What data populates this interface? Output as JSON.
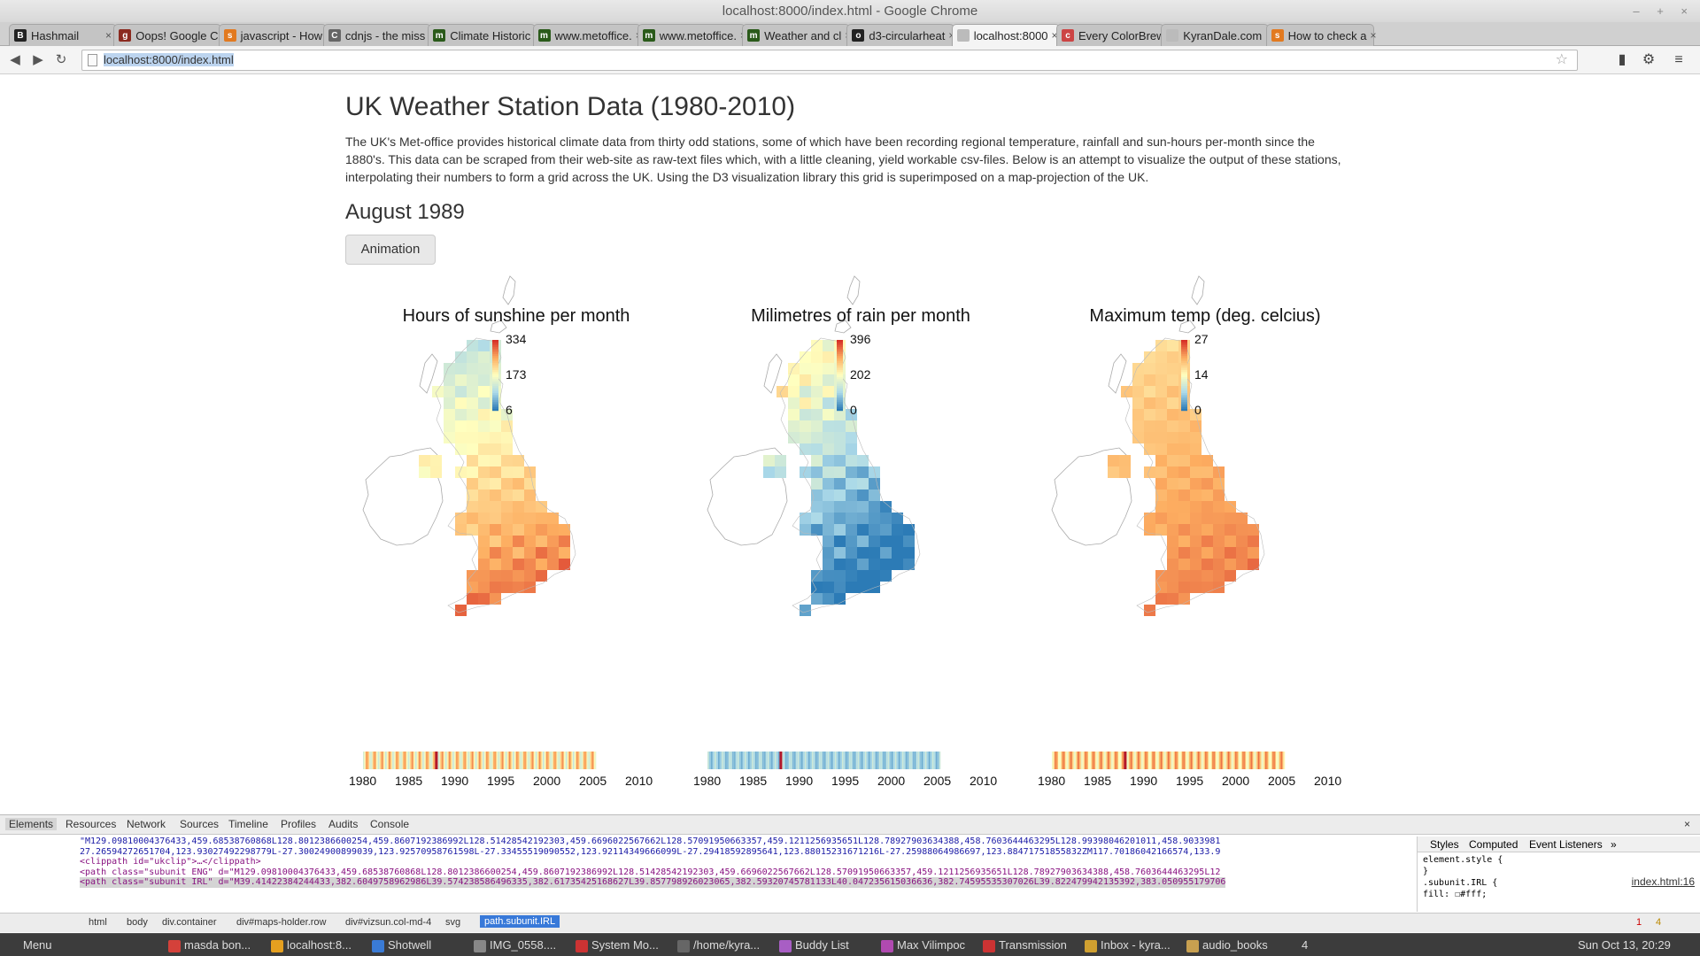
{
  "window": {
    "title": "localhost:8000/index.html - Google Chrome"
  },
  "tabs": [
    {
      "label": "Hashmail",
      "favicon": "B",
      "color": "#222"
    },
    {
      "label": "Oops! Google C",
      "favicon": "g",
      "color": "#8b2a1f"
    },
    {
      "label": "javascript - How",
      "favicon": "s",
      "color": "#e27a20"
    },
    {
      "label": "cdnjs - the miss",
      "favicon": "C",
      "color": "#666"
    },
    {
      "label": "Climate Historic",
      "favicon": "m",
      "color": "#2a5a1a"
    },
    {
      "label": "www.metoffice.",
      "favicon": "m",
      "color": "#2a5a1a"
    },
    {
      "label": "www.metoffice.",
      "favicon": "m",
      "color": "#2a5a1a"
    },
    {
      "label": "Weather and cl",
      "favicon": "m",
      "color": "#2a5a1a"
    },
    {
      "label": "d3-circularheat",
      "favicon": "o",
      "color": "#222"
    },
    {
      "label": "localhost:8000",
      "favicon": "",
      "color": "#bbb"
    },
    {
      "label": "Every ColorBrew",
      "favicon": "c",
      "color": "#c44"
    },
    {
      "label": "KyranDale.com",
      "favicon": "",
      "color": "#bbb"
    },
    {
      "label": "How to check a",
      "favicon": "s",
      "color": "#e27a20"
    }
  ],
  "toolbar": {
    "url": "localhost:8000/index.html"
  },
  "page": {
    "title": "UK Weather Station Data (1980-2010)",
    "description": "The UK's Met-office provides historical climate data from thirty odd stations, some of which have been recording regional temperature, rainfall and sun-hours per-month since the 1880's. This data can be scraped from their web-site as raw-text files which, with a little cleaning, yield workable csv-files. Below is an attempt to visualize the output of these stations, interpolating their numbers to form a grid across the UK. Using the D3 visualization library this grid is superimposed on a map-projection of the UK.",
    "current_month": "August 1989",
    "animation_button": "Animation"
  },
  "chart_data": [
    {
      "type": "heatmap",
      "title": "Hours of sunshine per month",
      "legend": {
        "max": "334",
        "mid": "173",
        "min": "6"
      },
      "timeline_labels": [
        "1980",
        "1985",
        "1990",
        "1995",
        "2000",
        "2005",
        "2010"
      ],
      "selected_year": 1989.6
    },
    {
      "type": "heatmap",
      "title": "Milimetres of rain per month",
      "legend": {
        "max": "396",
        "mid": "202",
        "min": "0"
      },
      "timeline_labels": [
        "1980",
        "1985",
        "1990",
        "1995",
        "2000",
        "2005",
        "2010"
      ],
      "selected_year": 1989.6
    },
    {
      "type": "heatmap",
      "title": "Maximum temp (deg. celcius)",
      "legend": {
        "max": "27",
        "mid": "14",
        "min": "0"
      },
      "timeline_labels": [
        "1980",
        "1985",
        "1990",
        "1995",
        "2000",
        "2005",
        "2010"
      ],
      "selected_year": 1989.6
    }
  ],
  "devtools": {
    "tabs": [
      "Elements",
      "Resources",
      "Network",
      "Sources",
      "Timeline",
      "Profiles",
      "Audits",
      "Console"
    ],
    "code_lines": [
      "\"M129.09810004376433,459.68538760868L128.8012386600254,459.8607192386992L128.51428542192303,459.6696022567662L128.57091950663357,459.1211256935651L128.78927903634388,458.7603644463295L128.99398046201011,458.9033981",
      "27.26594272651704,123.93027492298779L-27.30024900899039,123.92570958761598L-27.33455519090552,123.92114349666099L-27.29418592895641,123.88015231671216L-27.25988064986697,123.88471751855832ZM117.70186042166574,133.9",
      "<clippath id=\"ukclip\">…</clippath>",
      "<path class=\"subunit ENG\" d=\"M129.09810004376433,459.68538760868L128.8012386600254,459.8607192386992L128.51428542192303,459.6696022567662L128.57091950663357,459.1211256935651L128.78927903634388,458.7603644463295L12",
      "<path class=\"subunit IRL\" d=\"M39.41422384244433,382.6049758962986L39.574238586496335,382.61735425168627L39.857798926023065,382.59320745781133L40.047235615036636,382.74595535307026L39.822479942135392,383.050955179706"
    ],
    "styles_tabs": [
      "Styles",
      "Computed",
      "Event Listeners",
      "»"
    ],
    "style_rules": [
      "element.style {",
      "}",
      ".subunit.IRL {",
      "fill: ☐#fff;"
    ],
    "style_link": "index.html:16",
    "breadcrumbs": [
      "html",
      "body",
      "div.container",
      "div#maps-holder.row",
      "div#vizsun.col-md-4",
      "svg",
      "path.subunit.IRL"
    ],
    "errors": "1",
    "warnings": "4"
  },
  "taskbar": {
    "menu": "Menu",
    "tasks": [
      "masda bon...",
      "localhost:8...",
      "Shotwell",
      "IMG_0558....",
      "System Mo...",
      "/home/kyra...",
      "Buddy List",
      "Max Vilimpoc",
      "Transmission",
      "Inbox - kyra...",
      "audio_books"
    ],
    "badge": "4",
    "clock": "Sun Oct 13, 20:29"
  }
}
